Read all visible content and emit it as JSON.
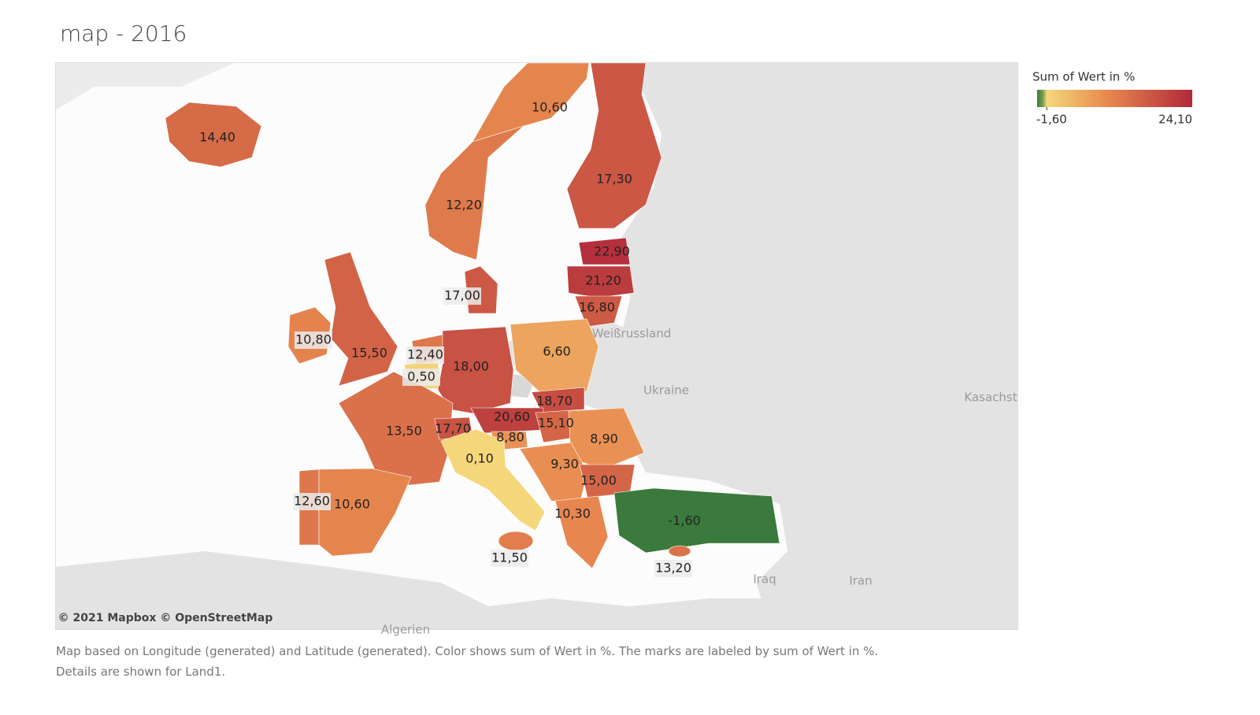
{
  "title": "map - 2016",
  "legend": {
    "title": "Sum of Wert in %",
    "min": {
      "value": -1.6,
      "label": "-1,60"
    },
    "max": {
      "value": 24.1,
      "label": "24,10"
    }
  },
  "regions": [
    {
      "value": 14.4,
      "label": "14,40"
    },
    {
      "value": 10.6,
      "label": "10,60"
    },
    {
      "value": 12.2,
      "label": "12,20"
    },
    {
      "value": 17.3,
      "label": "17,30"
    },
    {
      "value": 22.9,
      "label": "22,90"
    },
    {
      "value": 21.2,
      "label": "21,20"
    },
    {
      "value": 16.8,
      "label": "16,80"
    },
    {
      "value": 17.0,
      "label": "17,00"
    },
    {
      "value": 10.8,
      "label": "10,80"
    },
    {
      "value": 15.5,
      "label": "15,50"
    },
    {
      "value": 12.4,
      "label": "12,40"
    },
    {
      "value": 0.5,
      "label": "0,50"
    },
    {
      "value": 18.0,
      "label": "18,00"
    },
    {
      "value": 6.6,
      "label": "6,60"
    },
    {
      "value": 18.7,
      "label": "18,70"
    },
    {
      "value": 20.6,
      "label": "20,60"
    },
    {
      "value": 15.1,
      "label": "15,10"
    },
    {
      "value": 8.9,
      "label": "8,90"
    },
    {
      "value": 13.5,
      "label": "13,50"
    },
    {
      "value": 17.7,
      "label": "17,70"
    },
    {
      "value": 8.8,
      "label": "8,80"
    },
    {
      "value": 0.1,
      "label": "0,10"
    },
    {
      "value": 9.3,
      "label": "9,30"
    },
    {
      "value": 15.0,
      "label": "15,00"
    },
    {
      "value": 12.6,
      "label": "12,60"
    },
    {
      "value": 10.6,
      "label": "10,60"
    },
    {
      "value": 10.3,
      "label": "10,30"
    },
    {
      "value": -1.6,
      "label": "-1,60"
    },
    {
      "value": 11.5,
      "label": "11,50"
    },
    {
      "value": 13.2,
      "label": "13,20"
    }
  ],
  "basemap_labels": [
    "Weißrussland",
    "Ukraine",
    "Kasachst",
    "Iraq",
    "Iran",
    "Algerien"
  ],
  "attribution": "© 2021 Mapbox © OpenStreetMap",
  "caption": [
    "Map based on Longitude (generated) and Latitude (generated).  Color shows sum of Wert in %.  The marks are labeled by sum of Wert in %.",
    "Details are shown for Land1."
  ]
}
